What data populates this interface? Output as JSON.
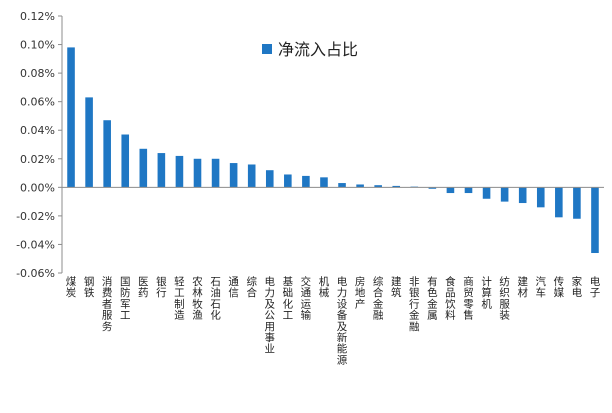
{
  "chart_data": {
    "type": "bar",
    "title": "",
    "xlabel": "",
    "ylabel": "",
    "legend": {
      "position": "top-center"
    },
    "grid": false,
    "ylim": [
      -0.0006,
      0.0012
    ],
    "yticks": [
      {
        "value": 0.0012,
        "label": "0.12%"
      },
      {
        "value": 0.001,
        "label": "0.10%"
      },
      {
        "value": 0.0008,
        "label": "0.08%"
      },
      {
        "value": 0.0006,
        "label": "0.06%"
      },
      {
        "value": 0.0004,
        "label": "0.04%"
      },
      {
        "value": 0.0002,
        "label": "0.02%"
      },
      {
        "value": 0.0,
        "label": "0.00%"
      },
      {
        "value": -0.0002,
        "label": "-0.02%"
      },
      {
        "value": -0.0004,
        "label": "-0.04%"
      },
      {
        "value": -0.0006,
        "label": "-0.06%"
      }
    ],
    "categories": [
      "煤炭",
      "钢铁",
      "消费者服务",
      "国防军工",
      "医药",
      "银行",
      "轻工制造",
      "农林牧渔",
      "石油石化",
      "通信",
      "综合",
      "电力及公用事业",
      "基础化工",
      "交通运输",
      "机械",
      "电力设备及新能源",
      "房地产",
      "综合金融",
      "建筑",
      "非银行金融",
      "有色金属",
      "食品饮料",
      "商贸零售",
      "计算机",
      "纺织服装",
      "建材",
      "汽车",
      "传媒",
      "家电",
      "电子"
    ],
    "series": [
      {
        "name": "净流入占比",
        "color": "#1F77C4",
        "values": [
          0.00098,
          0.00063,
          0.00047,
          0.00037,
          0.00027,
          0.00024,
          0.00022,
          0.0002,
          0.0002,
          0.00017,
          0.00016,
          0.00012,
          9e-05,
          8e-05,
          7e-05,
          3e-05,
          2e-05,
          1.5e-05,
          1e-05,
          5e-06,
          -1e-05,
          -4e-05,
          -4e-05,
          -8e-05,
          -0.0001,
          -0.00011,
          -0.00014,
          -0.00021,
          -0.00022,
          -0.00046
        ]
      }
    ]
  }
}
